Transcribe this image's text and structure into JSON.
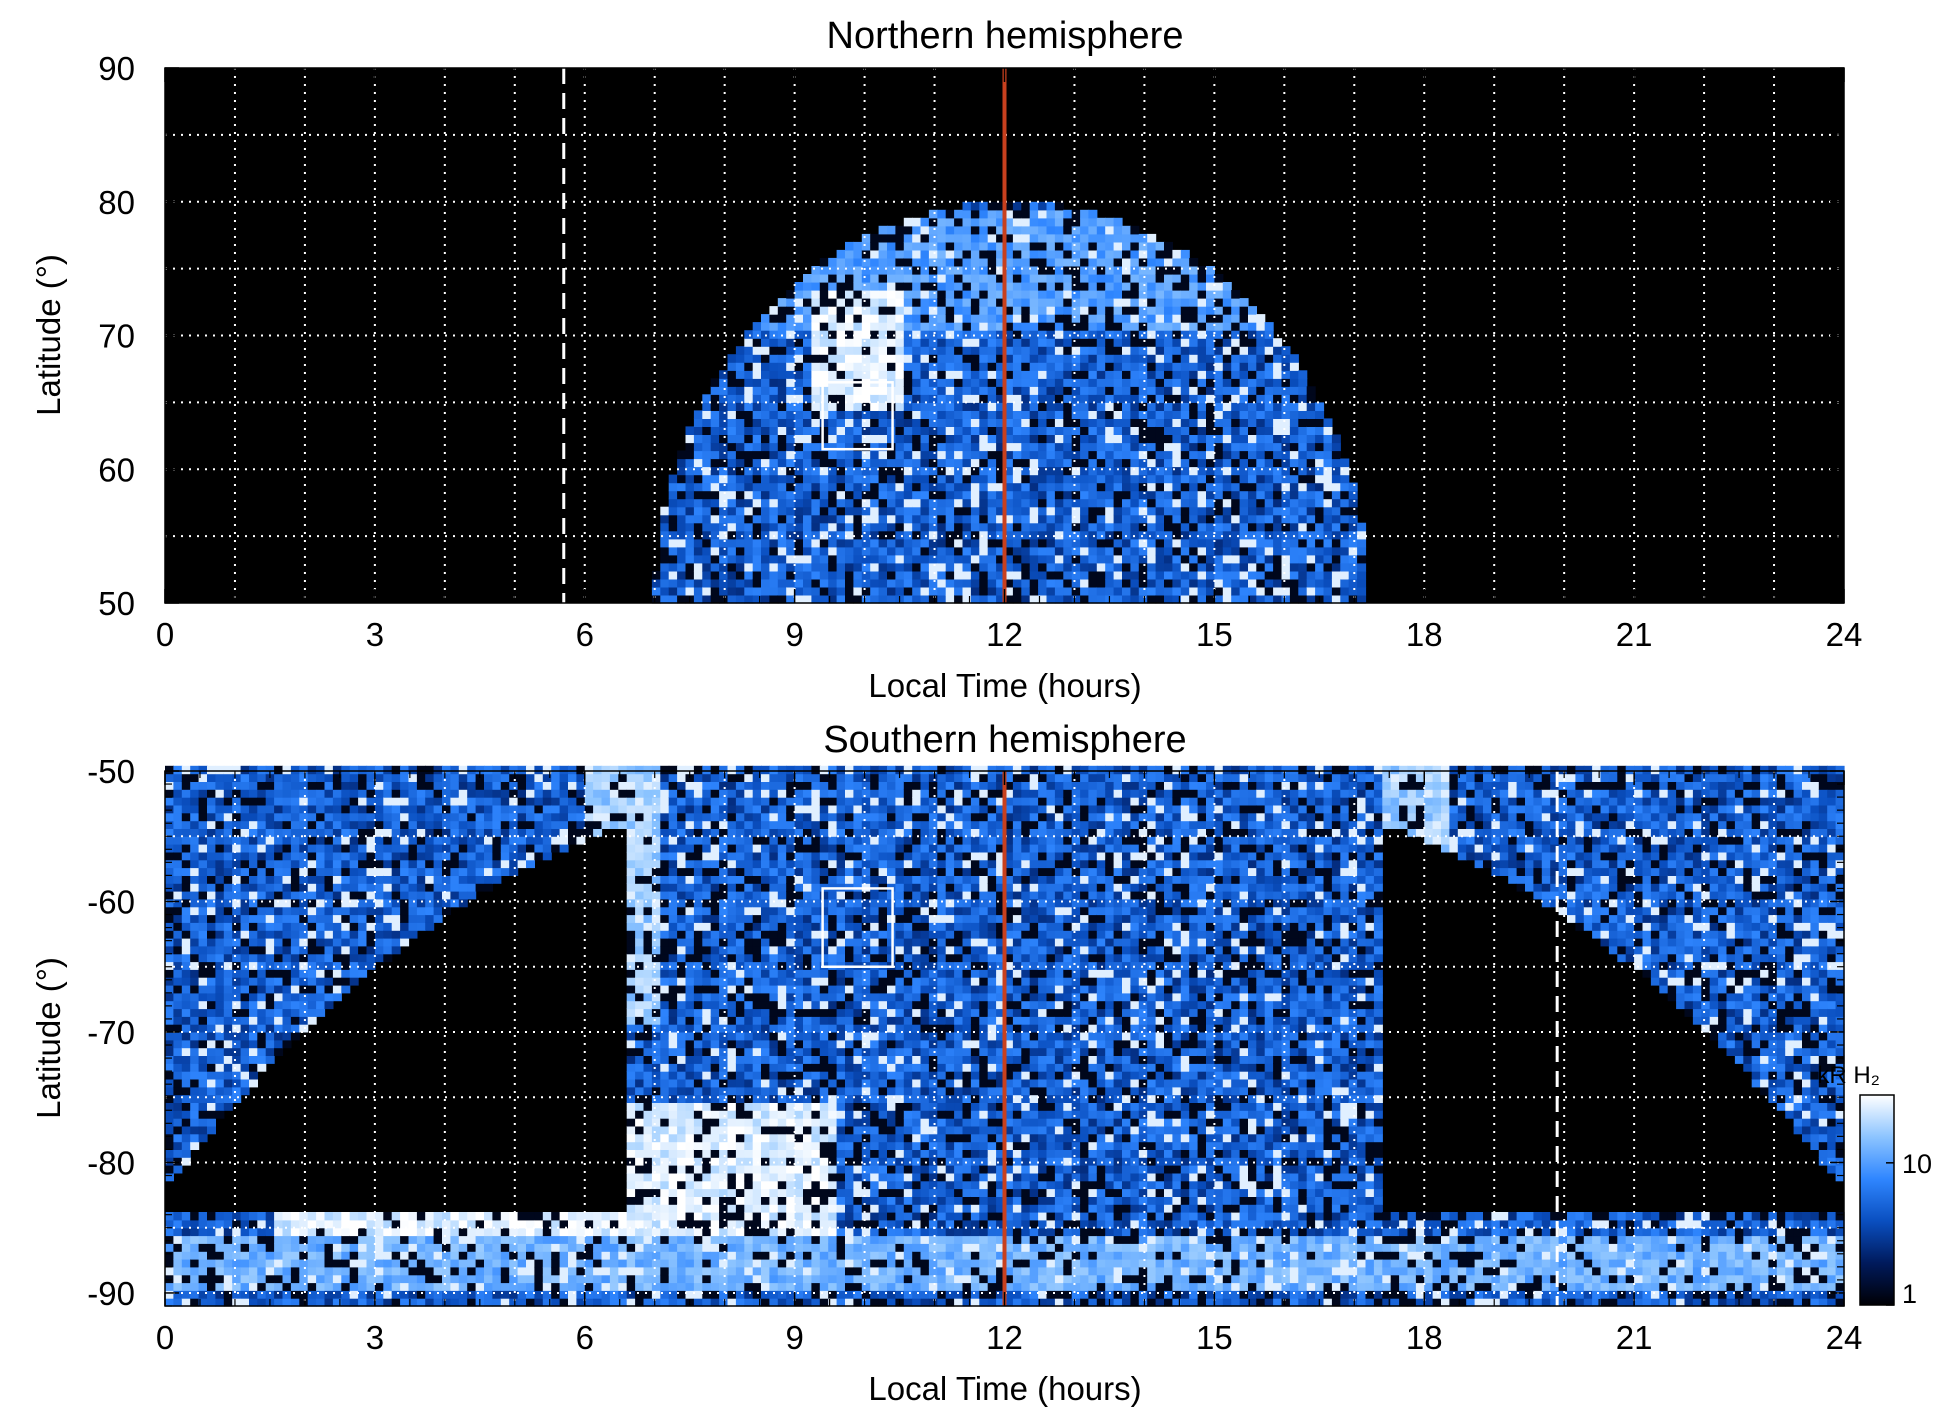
{
  "figure": {
    "colorbar": {
      "label": "kR H₂",
      "ticks": [
        {
          "value": 1,
          "label": "1"
        },
        {
          "value": 10,
          "label": "10"
        }
      ],
      "range": [
        1,
        30
      ],
      "scale": "log",
      "colormap": [
        "#000005",
        "#001a5c",
        "#0a4fc0",
        "#2f86ff",
        "#8cc4ff",
        "#ffffff"
      ]
    },
    "colors": {
      "background": "#000000",
      "grid": "#ffffff",
      "noon_line": "#c8401e",
      "terminator": "#ffffff",
      "box": "#ffffff"
    }
  },
  "chart_data": [
    {
      "type": "heatmap",
      "title": "Northern hemisphere",
      "xlabel": "Local Time (hours)",
      "ylabel": "Latitude (°)",
      "xlim": [
        0,
        24
      ],
      "ylim": [
        50,
        90
      ],
      "xticks": [
        0,
        3,
        6,
        9,
        12,
        15,
        18,
        21,
        24
      ],
      "xtick_labels": [
        "0",
        "3",
        "6",
        "9",
        "12",
        "15",
        "18",
        "21",
        "24"
      ],
      "yticks": [
        50,
        60,
        70,
        80,
        90
      ],
      "ytick_labels": [
        "50",
        "60",
        "70",
        "80",
        "90"
      ],
      "grid": true,
      "grid_x_step": 1,
      "grid_y_step": 5,
      "noon_line_lt": 12,
      "terminator_lt": [
        5.7
      ],
      "highlight_box": {
        "lt": [
          9.4,
          10.4
        ],
        "lat": [
          61.5,
          66.5
        ]
      },
      "coverage": {
        "lt_range": [
          7.0,
          17.2
        ],
        "lat_min": 50,
        "lat_max": 80,
        "edge": "dome"
      },
      "features": [
        {
          "name": "bright patch",
          "lt": [
            9.2,
            10.5
          ],
          "lat": [
            64,
            73
          ],
          "level_kR": 30
        },
        {
          "name": "polar arc",
          "lt": [
            8.5,
            15.5
          ],
          "lat": [
            70,
            79
          ],
          "level_kR": 12
        }
      ]
    },
    {
      "type": "heatmap",
      "title": "Southern hemisphere",
      "xlabel": "Local Time (hours)",
      "ylabel": "Latitude (°)",
      "xlim": [
        0,
        24
      ],
      "ylim": [
        -91,
        -50
      ],
      "xticks": [
        0,
        3,
        6,
        9,
        12,
        15,
        18,
        21,
        24
      ],
      "xtick_labels": [
        "0",
        "3",
        "6",
        "9",
        "12",
        "15",
        "18",
        "21",
        "24"
      ],
      "yticks": [
        -90,
        -80,
        -70,
        -60,
        -50
      ],
      "ytick_labels": [
        "-90",
        "-80",
        "-70",
        "-60",
        "-50"
      ],
      "grid": true,
      "grid_x_step": 1,
      "grid_y_step": 5,
      "noon_line_lt": 12,
      "terminator_lt": [
        19.9
      ],
      "highlight_box": {
        "lt": [
          9.4,
          10.4
        ],
        "lat": [
          -59,
          -65
        ]
      },
      "coverage": {
        "lt_range": [
          0,
          24
        ],
        "lat_max": -50,
        "lat_min": -90,
        "edge": "bowl"
      },
      "features": [
        {
          "name": "dawn bright region",
          "lt": [
            1.5,
            9.5
          ],
          "lat": [
            -76,
            -86
          ],
          "level_kR": 30
        },
        {
          "name": "dawn arc",
          "lt": [
            6.0,
            7.0
          ],
          "lat": [
            -50,
            -70
          ],
          "level_kR": 20
        },
        {
          "name": "dusk arc",
          "lt": [
            17.3,
            18.3
          ],
          "lat": [
            -50,
            -82
          ],
          "level_kR": 20
        },
        {
          "name": "pole band",
          "lt": [
            0,
            24
          ],
          "lat": [
            -86,
            -90
          ],
          "level_kR": 15
        }
      ]
    }
  ]
}
